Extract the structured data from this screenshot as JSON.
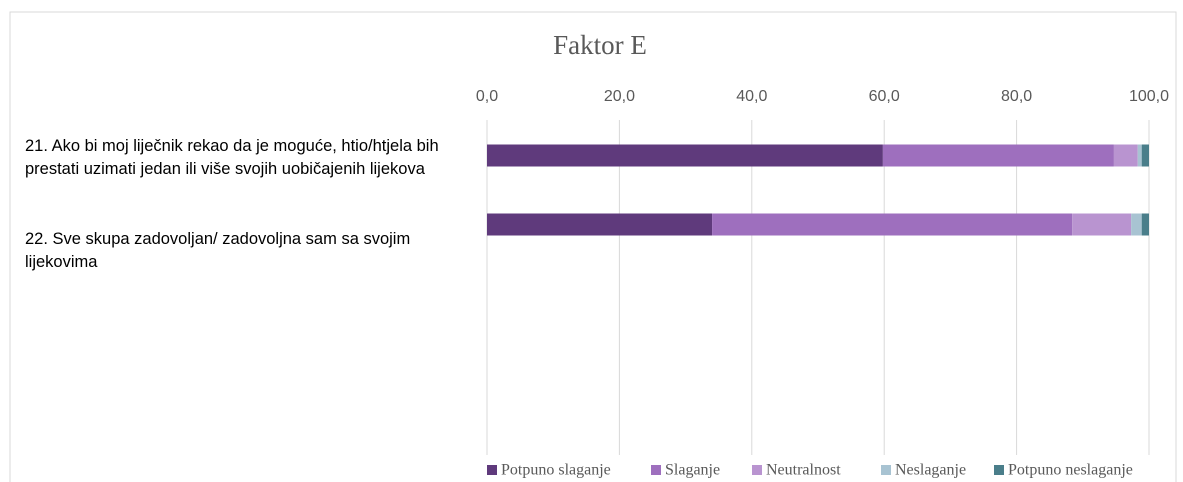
{
  "chart_data": {
    "type": "stacked_barh",
    "title": "Faktor E",
    "categories": [
      "21. Ako bi moj liječnik rekao da je moguće, htio/htjela bih prestati uzimati jedan ili više svojih uobičajenih lijekova",
      "22. Sve skupa zadovoljan/ zadovoljna sam sa svojim lijekovima"
    ],
    "series": [
      {
        "name": "Potpuno slaganje",
        "color": "#5f3a7c",
        "values": [
          59.8,
          34.0
        ]
      },
      {
        "name": "Slaganje",
        "color": "#9e6fbe",
        "values": [
          34.9,
          54.4
        ]
      },
      {
        "name": "Neutralnost",
        "color": "#b994d0",
        "values": [
          3.6,
          8.9
        ]
      },
      {
        "name": "Neslaganje",
        "color": "#a8c3d2",
        "values": [
          0.6,
          1.6
        ]
      },
      {
        "name": "Potpuno neslaganje",
        "color": "#4a7e8a",
        "values": [
          1.1,
          1.1
        ]
      }
    ],
    "xlim": [
      0,
      100
    ],
    "xticks": [
      {
        "value": 0,
        "label": "0,0"
      },
      {
        "value": 20,
        "label": "20,0"
      },
      {
        "value": 40,
        "label": "40,0"
      },
      {
        "value": 60,
        "label": "60,0"
      },
      {
        "value": 80,
        "label": "80,0"
      },
      {
        "value": 100,
        "label": "100,0"
      }
    ],
    "grid": true,
    "legend": "bottom"
  }
}
